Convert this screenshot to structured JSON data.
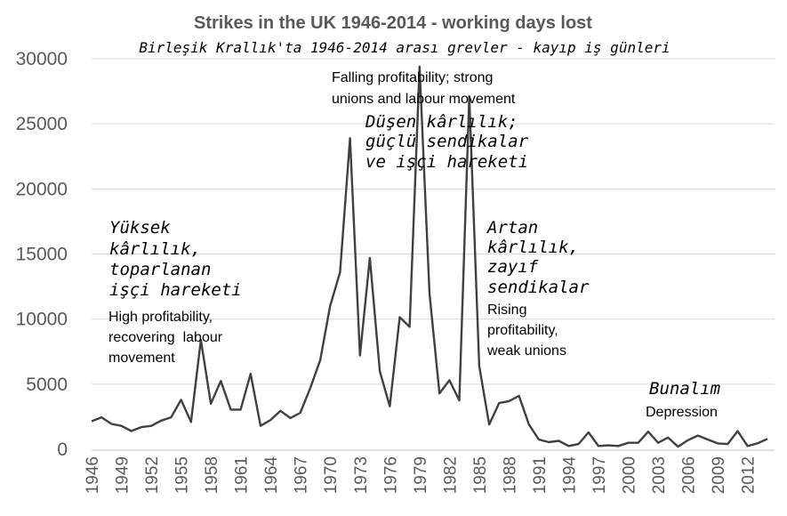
{
  "chart_data": {
    "type": "line",
    "title": "Strikes in the UK 1946-2014 - working days lost",
    "subtitle": "Birleşik Krallık'ta 1946-2014 arası grevler - kayıp iş günleri",
    "xlabel": "",
    "ylabel": "",
    "ylim": [
      0,
      30000
    ],
    "yticks": [
      "0",
      "5000",
      "10000",
      "15000",
      "20000",
      "25000",
      "30000"
    ],
    "xticks": [
      "1946",
      "1949",
      "1952",
      "1955",
      "1958",
      "1961",
      "1964",
      "1967",
      "1970",
      "1973",
      "1976",
      "1979",
      "1982",
      "1985",
      "1988",
      "1991",
      "1994",
      "1997",
      "2000",
      "2003",
      "2006",
      "2009",
      "2012"
    ],
    "grid": "horizontal",
    "line_color": "#404040",
    "x": [
      1946,
      1947,
      1948,
      1949,
      1950,
      1951,
      1952,
      1953,
      1954,
      1955,
      1956,
      1957,
      1958,
      1959,
      1960,
      1961,
      1962,
      1963,
      1964,
      1965,
      1966,
      1967,
      1968,
      1969,
      1970,
      1971,
      1972,
      1973,
      1974,
      1975,
      1976,
      1977,
      1978,
      1979,
      1980,
      1981,
      1982,
      1983,
      1984,
      1985,
      1986,
      1987,
      1988,
      1989,
      1990,
      1991,
      1992,
      1993,
      1994,
      1995,
      1996,
      1997,
      1998,
      1999,
      2000,
      2001,
      2002,
      2003,
      2004,
      2005,
      2006,
      2007,
      2008,
      2009,
      2010,
      2011,
      2012,
      2013,
      2014
    ],
    "values": [
      2150,
      2450,
      1950,
      1800,
      1400,
      1700,
      1800,
      2200,
      2450,
      3800,
      2100,
      8400,
      3500,
      5250,
      3050,
      3050,
      5800,
      1800,
      2250,
      2950,
      2400,
      2800,
      4700,
      6850,
      11000,
      13600,
      23900,
      7200,
      14700,
      6000,
      3300,
      10150,
      9400,
      29400,
      11950,
      4300,
      5300,
      3750,
      27100,
      6400,
      1900,
      3550,
      3700,
      4100,
      1900,
      750,
      550,
      650,
      250,
      400,
      1300,
      250,
      300,
      250,
      500,
      500,
      1350,
      500,
      900,
      200,
      700,
      1050,
      750,
      450,
      400,
      1400,
      250,
      450,
      800
    ],
    "annotations": {
      "high_en": [
        "High profitability,",
        "recovering  labour",
        "movement"
      ],
      "high_tr": [
        "Yüksek",
        "kârlılık,",
        "toparlanan",
        "işçi hareketi"
      ],
      "falling_en": [
        "Falling profitability; strong",
        "unions and labour movement"
      ],
      "falling_tr": [
        "Düşen kârlılık;",
        "güçlü sendikalar",
        "ve işçi hareketi"
      ],
      "rising_en": [
        "Rising",
        "profitability,",
        "weak unions"
      ],
      "rising_tr": [
        "Artan",
        "kârlılık,",
        "zayıf",
        "sendikalar"
      ],
      "depression_en": "Depression",
      "depression_tr": "Bunalım"
    }
  }
}
